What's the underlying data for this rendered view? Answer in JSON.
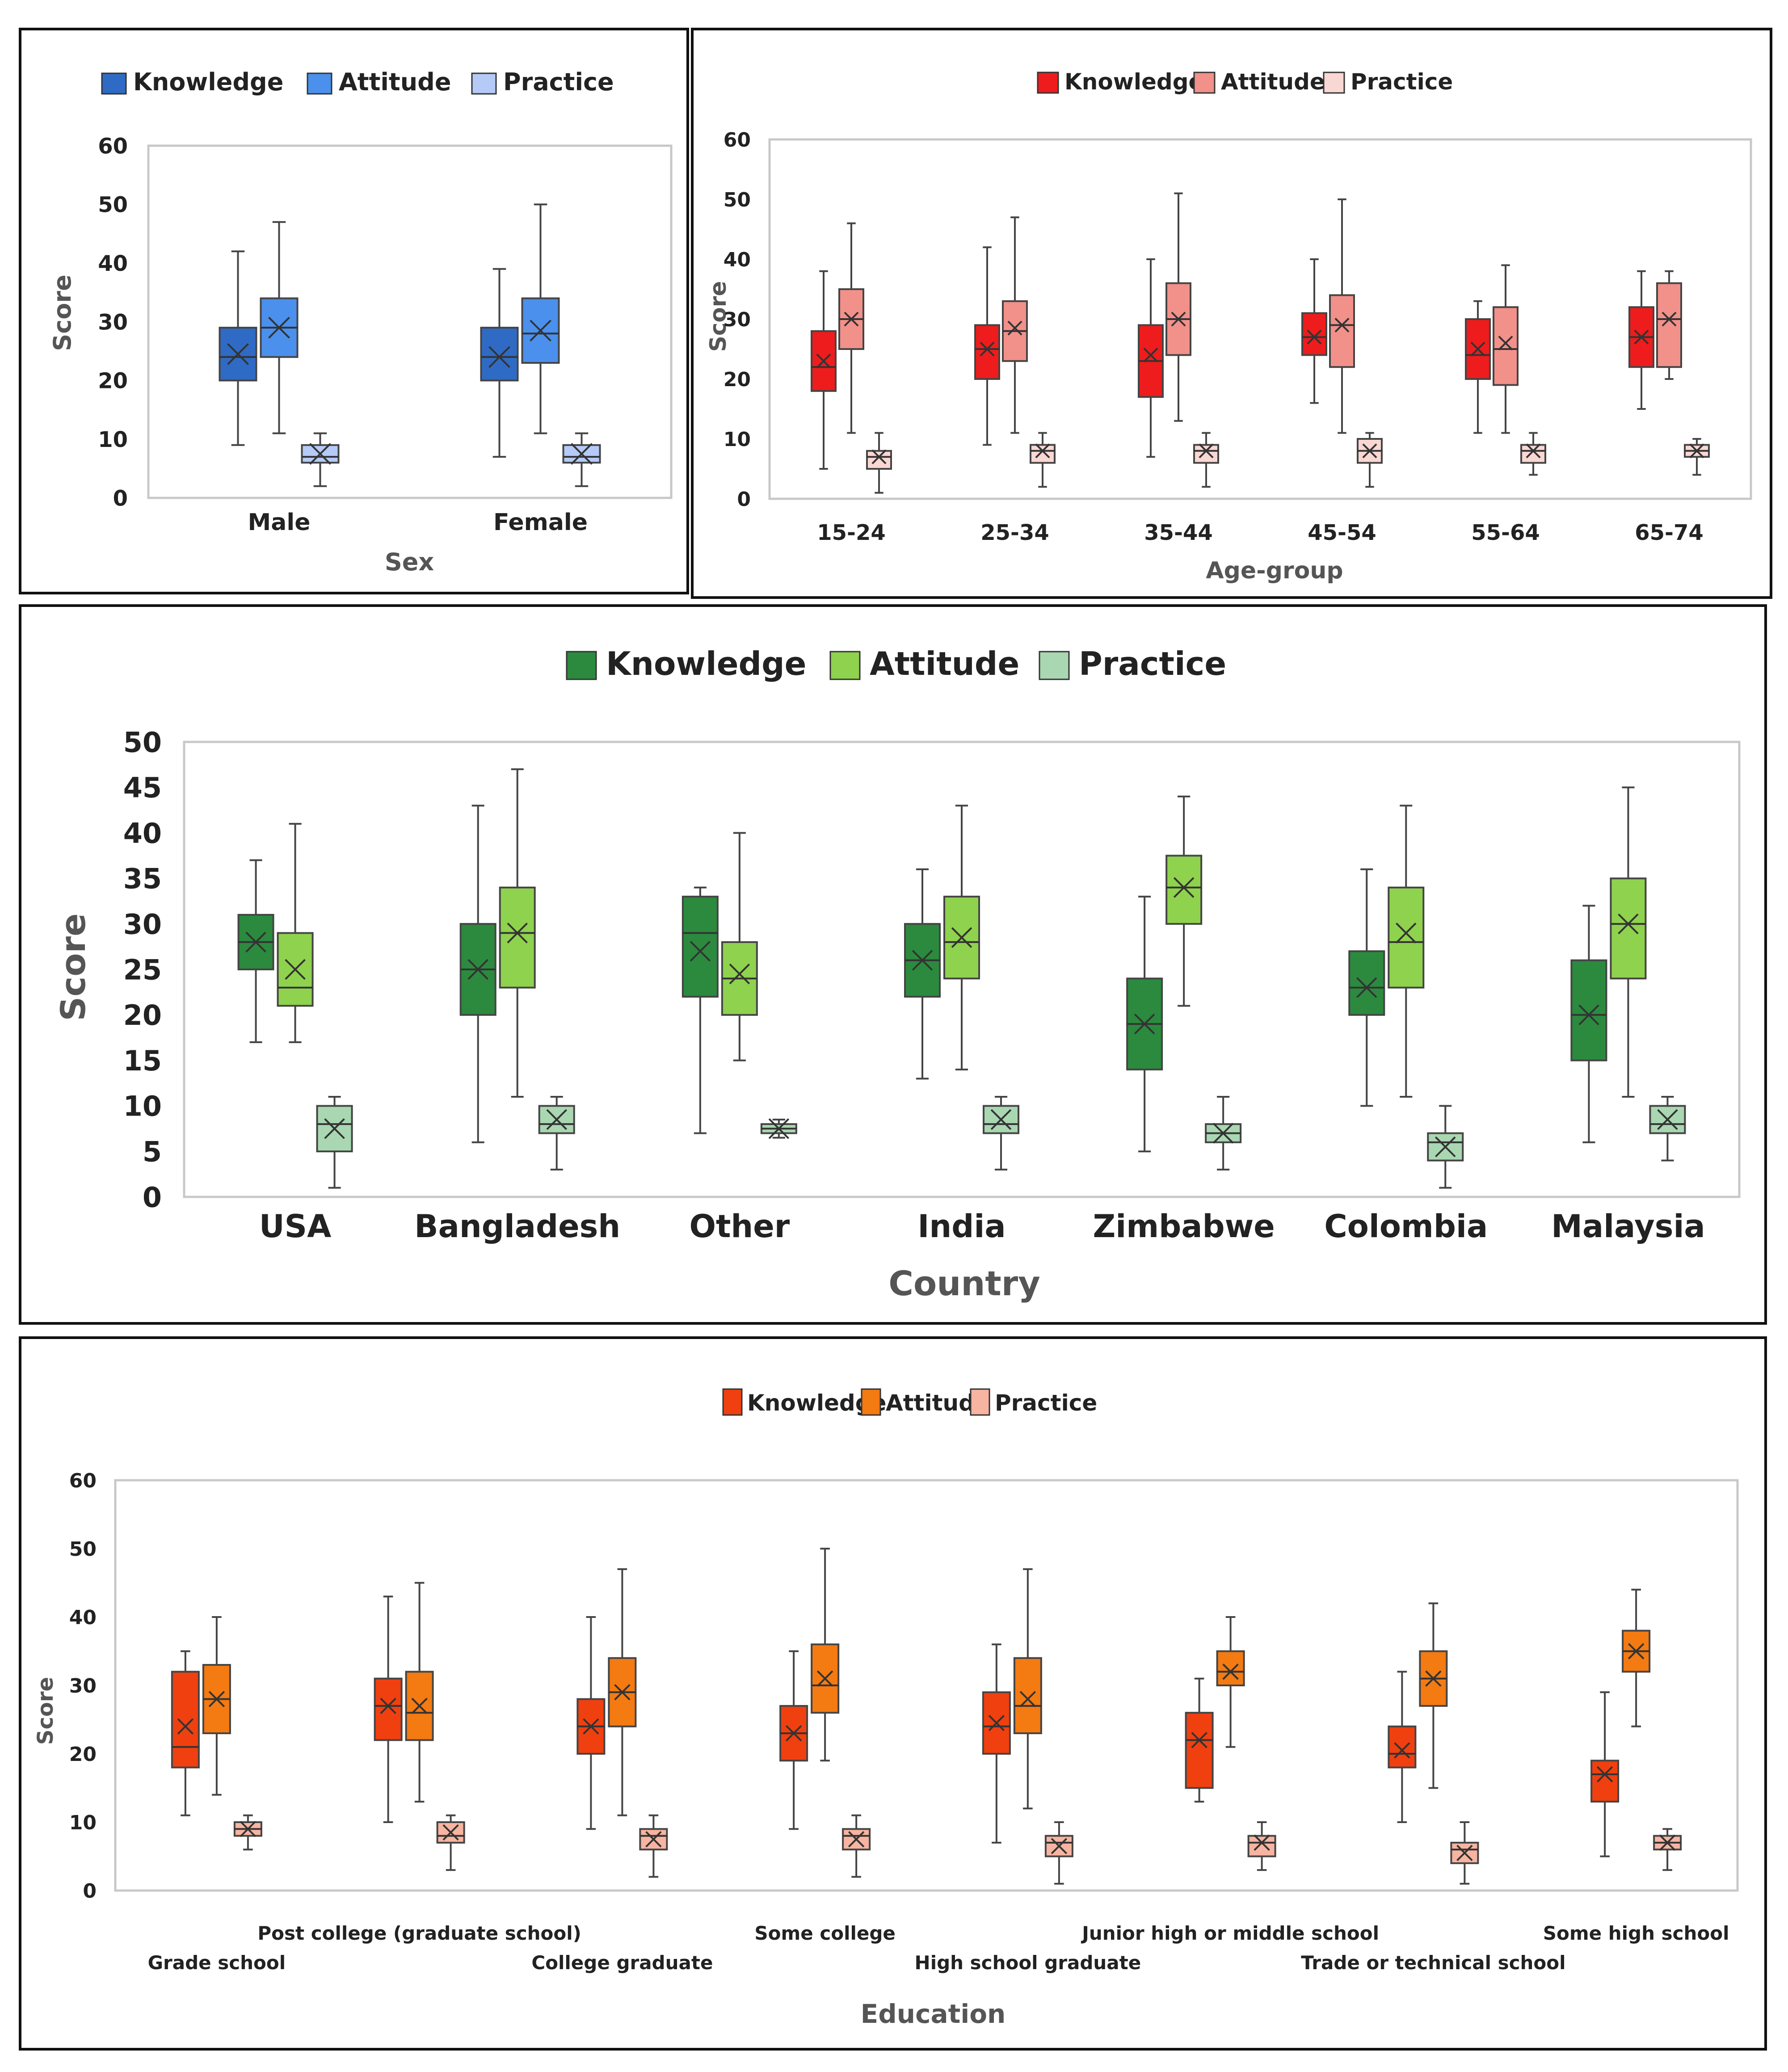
{
  "colors": {
    "sex": [
      "#2f6bc4",
      "#4b90ec",
      "#b5caf7"
    ],
    "age": [
      "#ee1c1c",
      "#f2908a",
      "#f9d7d3"
    ],
    "country": [
      "#2b8a3e",
      "#8fd24e",
      "#a9d7b1"
    ],
    "education": [
      "#f0400f",
      "#f47a12",
      "#f7b4a1"
    ],
    "whisker": "#444444",
    "plot_border": "#c8c8c8"
  },
  "charts": [
    {
      "id": "sex",
      "type": "box",
      "legend": [
        "Knowledge",
        "Attitude",
        "Practice"
      ],
      "ylabel": "Score",
      "xlabel": "Sex",
      "ylim": [
        0,
        60
      ],
      "yticks": [
        "0",
        "10",
        "20",
        "30",
        "40",
        "50",
        "60"
      ],
      "categories": [
        "Male",
        "Female"
      ],
      "groups": [
        [
          {
            "min": 9,
            "q1": 20,
            "median": 24,
            "q3": 29,
            "max": 42,
            "mean": 24.5
          },
          {
            "min": 11,
            "q1": 24,
            "median": 29,
            "q3": 34,
            "max": 47,
            "mean": 29
          },
          {
            "min": 2,
            "q1": 6,
            "median": 7,
            "q3": 9,
            "max": 11,
            "mean": 7.5
          }
        ],
        [
          {
            "min": 7,
            "q1": 20,
            "median": 24,
            "q3": 29,
            "max": 39,
            "mean": 24
          },
          {
            "min": 11,
            "q1": 23,
            "median": 28,
            "q3": 34,
            "max": 50,
            "mean": 28.5
          },
          {
            "min": 2,
            "q1": 6,
            "median": 7,
            "q3": 9,
            "max": 11,
            "mean": 7.5
          }
        ]
      ]
    },
    {
      "id": "age",
      "type": "box",
      "legend": [
        "Knowledge",
        "Attitude",
        "Practice"
      ],
      "ylabel": "Score",
      "xlabel": "Age-group",
      "ylim": [
        0,
        60
      ],
      "yticks": [
        "0",
        "10",
        "20",
        "30",
        "40",
        "50",
        "60"
      ],
      "categories": [
        "15-24",
        "25-34",
        "35-44",
        "45-54",
        "55-64",
        "65-74"
      ],
      "groups": [
        [
          {
            "min": 5,
            "q1": 18,
            "median": 22,
            "q3": 28,
            "max": 38,
            "mean": 23
          },
          {
            "min": 11,
            "q1": 25,
            "median": 30,
            "q3": 35,
            "max": 46,
            "mean": 30
          },
          {
            "min": 1,
            "q1": 5,
            "median": 7,
            "q3": 8,
            "max": 11,
            "mean": 7
          }
        ],
        [
          {
            "min": 9,
            "q1": 20,
            "median": 25,
            "q3": 29,
            "max": 42,
            "mean": 25
          },
          {
            "min": 11,
            "q1": 23,
            "median": 28,
            "q3": 33,
            "max": 47,
            "mean": 28.5
          },
          {
            "min": 2,
            "q1": 6,
            "median": 8,
            "q3": 9,
            "max": 11,
            "mean": 8
          }
        ],
        [
          {
            "min": 7,
            "q1": 17,
            "median": 23,
            "q3": 29,
            "max": 40,
            "mean": 24
          },
          {
            "min": 13,
            "q1": 24,
            "median": 30,
            "q3": 36,
            "max": 51,
            "mean": 30
          },
          {
            "min": 2,
            "q1": 6,
            "median": 8,
            "q3": 9,
            "max": 11,
            "mean": 8
          }
        ],
        [
          {
            "min": 16,
            "q1": 24,
            "median": 27,
            "q3": 31,
            "max": 40,
            "mean": 27
          },
          {
            "min": 11,
            "q1": 22,
            "median": 29,
            "q3": 34,
            "max": 50,
            "mean": 29
          },
          {
            "min": 2,
            "q1": 6,
            "median": 8,
            "q3": 10,
            "max": 11,
            "mean": 8
          }
        ],
        [
          {
            "min": 11,
            "q1": 20,
            "median": 24,
            "q3": 30,
            "max": 33,
            "mean": 25
          },
          {
            "min": 11,
            "q1": 19,
            "median": 25,
            "q3": 32,
            "max": 39,
            "mean": 26
          },
          {
            "min": 4,
            "q1": 6,
            "median": 8,
            "q3": 9,
            "max": 11,
            "mean": 8
          }
        ],
        [
          {
            "min": 15,
            "q1": 22,
            "median": 27,
            "q3": 32,
            "max": 38,
            "mean": 27
          },
          {
            "min": 20,
            "q1": 22,
            "median": 30,
            "q3": 36,
            "max": 38,
            "mean": 30
          },
          {
            "min": 4,
            "q1": 7,
            "median": 8,
            "q3": 9,
            "max": 10,
            "mean": 8
          }
        ]
      ]
    },
    {
      "id": "country",
      "type": "box",
      "legend": [
        "Knowledge",
        "Attitude",
        "Practice"
      ],
      "ylabel": "Score",
      "xlabel": "Country",
      "ylim": [
        0,
        50
      ],
      "yticks": [
        "0",
        "5",
        "10",
        "15",
        "20",
        "25",
        "30",
        "35",
        "40",
        "45",
        "50"
      ],
      "categories": [
        "USA",
        "Bangladesh",
        "Other",
        "India",
        "Zimbabwe",
        "Colombia",
        "Malaysia"
      ],
      "groups": [
        [
          {
            "min": 17,
            "q1": 25,
            "median": 28,
            "q3": 31,
            "max": 37,
            "mean": 28
          },
          {
            "min": 17,
            "q1": 21,
            "median": 23,
            "q3": 29,
            "max": 41,
            "mean": 25
          },
          {
            "min": 1,
            "q1": 5,
            "median": 8,
            "q3": 10,
            "max": 11,
            "mean": 7.5
          }
        ],
        [
          {
            "min": 6,
            "q1": 20,
            "median": 25,
            "q3": 30,
            "max": 43,
            "mean": 25
          },
          {
            "min": 11,
            "q1": 23,
            "median": 29,
            "q3": 34,
            "max": 47,
            "mean": 29
          },
          {
            "min": 3,
            "q1": 7,
            "median": 8,
            "q3": 10,
            "max": 11,
            "mean": 8.5
          }
        ],
        [
          {
            "min": 7,
            "q1": 22,
            "median": 29,
            "q3": 33,
            "max": 34,
            "mean": 27
          },
          {
            "min": 15,
            "q1": 20,
            "median": 24,
            "q3": 28,
            "max": 40,
            "mean": 24.5
          },
          {
            "min": 6.5,
            "q1": 7,
            "median": 7.5,
            "q3": 8,
            "max": 8.5,
            "mean": 7.5
          }
        ],
        [
          {
            "min": 13,
            "q1": 22,
            "median": 26,
            "q3": 30,
            "max": 36,
            "mean": 26
          },
          {
            "min": 14,
            "q1": 24,
            "median": 28,
            "q3": 33,
            "max": 43,
            "mean": 28.5
          },
          {
            "min": 3,
            "q1": 7,
            "median": 8,
            "q3": 10,
            "max": 11,
            "mean": 8.5
          }
        ],
        [
          {
            "min": 5,
            "q1": 14,
            "median": 19,
            "q3": 24,
            "max": 33,
            "mean": 19
          },
          {
            "min": 21,
            "q1": 30,
            "median": 34,
            "q3": 37.5,
            "max": 44,
            "mean": 34
          },
          {
            "min": 3,
            "q1": 6,
            "median": 7,
            "q3": 8,
            "max": 11,
            "mean": 7
          }
        ],
        [
          {
            "min": 10,
            "q1": 20,
            "median": 23,
            "q3": 27,
            "max": 36,
            "mean": 23
          },
          {
            "min": 11,
            "q1": 23,
            "median": 28,
            "q3": 34,
            "max": 43,
            "mean": 29
          },
          {
            "min": 1,
            "q1": 4,
            "median": 6,
            "q3": 7,
            "max": 10,
            "mean": 5.5
          }
        ],
        [
          {
            "min": 6,
            "q1": 15,
            "median": 20,
            "q3": 26,
            "max": 32,
            "mean": 20
          },
          {
            "min": 11,
            "q1": 24,
            "median": 30,
            "q3": 35,
            "max": 45,
            "mean": 30
          },
          {
            "min": 4,
            "q1": 7,
            "median": 8,
            "q3": 10,
            "max": 11,
            "mean": 8.5
          }
        ]
      ]
    },
    {
      "id": "education",
      "type": "box",
      "legend": [
        "Knowledge",
        "Attitude",
        "Practice"
      ],
      "ylabel": "Score",
      "xlabel": "Education",
      "ylim": [
        0,
        60
      ],
      "yticks": [
        "0",
        "10",
        "20",
        "30",
        "40",
        "50",
        "60"
      ],
      "categories": [
        "Grade school",
        "Post college (graduate school)",
        "College graduate",
        "Some college",
        "High school graduate",
        "Junior high or middle school",
        "Trade or technical school",
        "Some high school"
      ],
      "groups": [
        [
          {
            "min": 11,
            "q1": 18,
            "median": 21,
            "q3": 32,
            "max": 35,
            "mean": 24
          },
          {
            "min": 14,
            "q1": 23,
            "median": 28,
            "q3": 33,
            "max": 40,
            "mean": 28
          },
          {
            "min": 6,
            "q1": 8,
            "median": 9,
            "q3": 10,
            "max": 11,
            "mean": 9
          }
        ],
        [
          {
            "min": 10,
            "q1": 22,
            "median": 27,
            "q3": 31,
            "max": 43,
            "mean": 27
          },
          {
            "min": 13,
            "q1": 22,
            "median": 26,
            "q3": 32,
            "max": 45,
            "mean": 27
          },
          {
            "min": 3,
            "q1": 7,
            "median": 8,
            "q3": 10,
            "max": 11,
            "mean": 8.5
          }
        ],
        [
          {
            "min": 9,
            "q1": 20,
            "median": 24,
            "q3": 28,
            "max": 40,
            "mean": 24
          },
          {
            "min": 11,
            "q1": 24,
            "median": 29,
            "q3": 34,
            "max": 47,
            "mean": 29
          },
          {
            "min": 2,
            "q1": 6,
            "median": 8,
            "q3": 9,
            "max": 11,
            "mean": 7.5
          }
        ],
        [
          {
            "min": 9,
            "q1": 19,
            "median": 23,
            "q3": 27,
            "max": 35,
            "mean": 23
          },
          {
            "min": 19,
            "q1": 26,
            "median": 30,
            "q3": 36,
            "max": 50,
            "mean": 31
          },
          {
            "min": 2,
            "q1": 6,
            "median": 8,
            "q3": 9,
            "max": 11,
            "mean": 7.5
          }
        ],
        [
          {
            "min": 7,
            "q1": 20,
            "median": 24,
            "q3": 29,
            "max": 36,
            "mean": 24.5
          },
          {
            "min": 12,
            "q1": 23,
            "median": 27,
            "q3": 34,
            "max": 47,
            "mean": 28
          },
          {
            "min": 1,
            "q1": 5,
            "median": 7,
            "q3": 8,
            "max": 10,
            "mean": 6.5
          }
        ],
        [
          {
            "min": 13,
            "q1": 15,
            "median": 22,
            "q3": 26,
            "max": 31,
            "mean": 22
          },
          {
            "min": 21,
            "q1": 30,
            "median": 32,
            "q3": 35,
            "max": 40,
            "mean": 32
          },
          {
            "min": 3,
            "q1": 5,
            "median": 7,
            "q3": 8,
            "max": 10,
            "mean": 7
          }
        ],
        [
          {
            "min": 10,
            "q1": 18,
            "median": 20,
            "q3": 24,
            "max": 32,
            "mean": 20.5
          },
          {
            "min": 15,
            "q1": 27,
            "median": 31,
            "q3": 35,
            "max": 42,
            "mean": 31
          },
          {
            "min": 1,
            "q1": 4,
            "median": 6,
            "q3": 7,
            "max": 10,
            "mean": 5.5
          }
        ],
        [
          {
            "min": 5,
            "q1": 13,
            "median": 17,
            "q3": 19,
            "max": 29,
            "mean": 17
          },
          {
            "min": 24,
            "q1": 32,
            "median": 35,
            "q3": 38,
            "max": 44,
            "mean": 35
          },
          {
            "min": 3,
            "q1": 6,
            "median": 7,
            "q3": 8,
            "max": 9,
            "mean": 7
          }
        ]
      ]
    }
  ]
}
